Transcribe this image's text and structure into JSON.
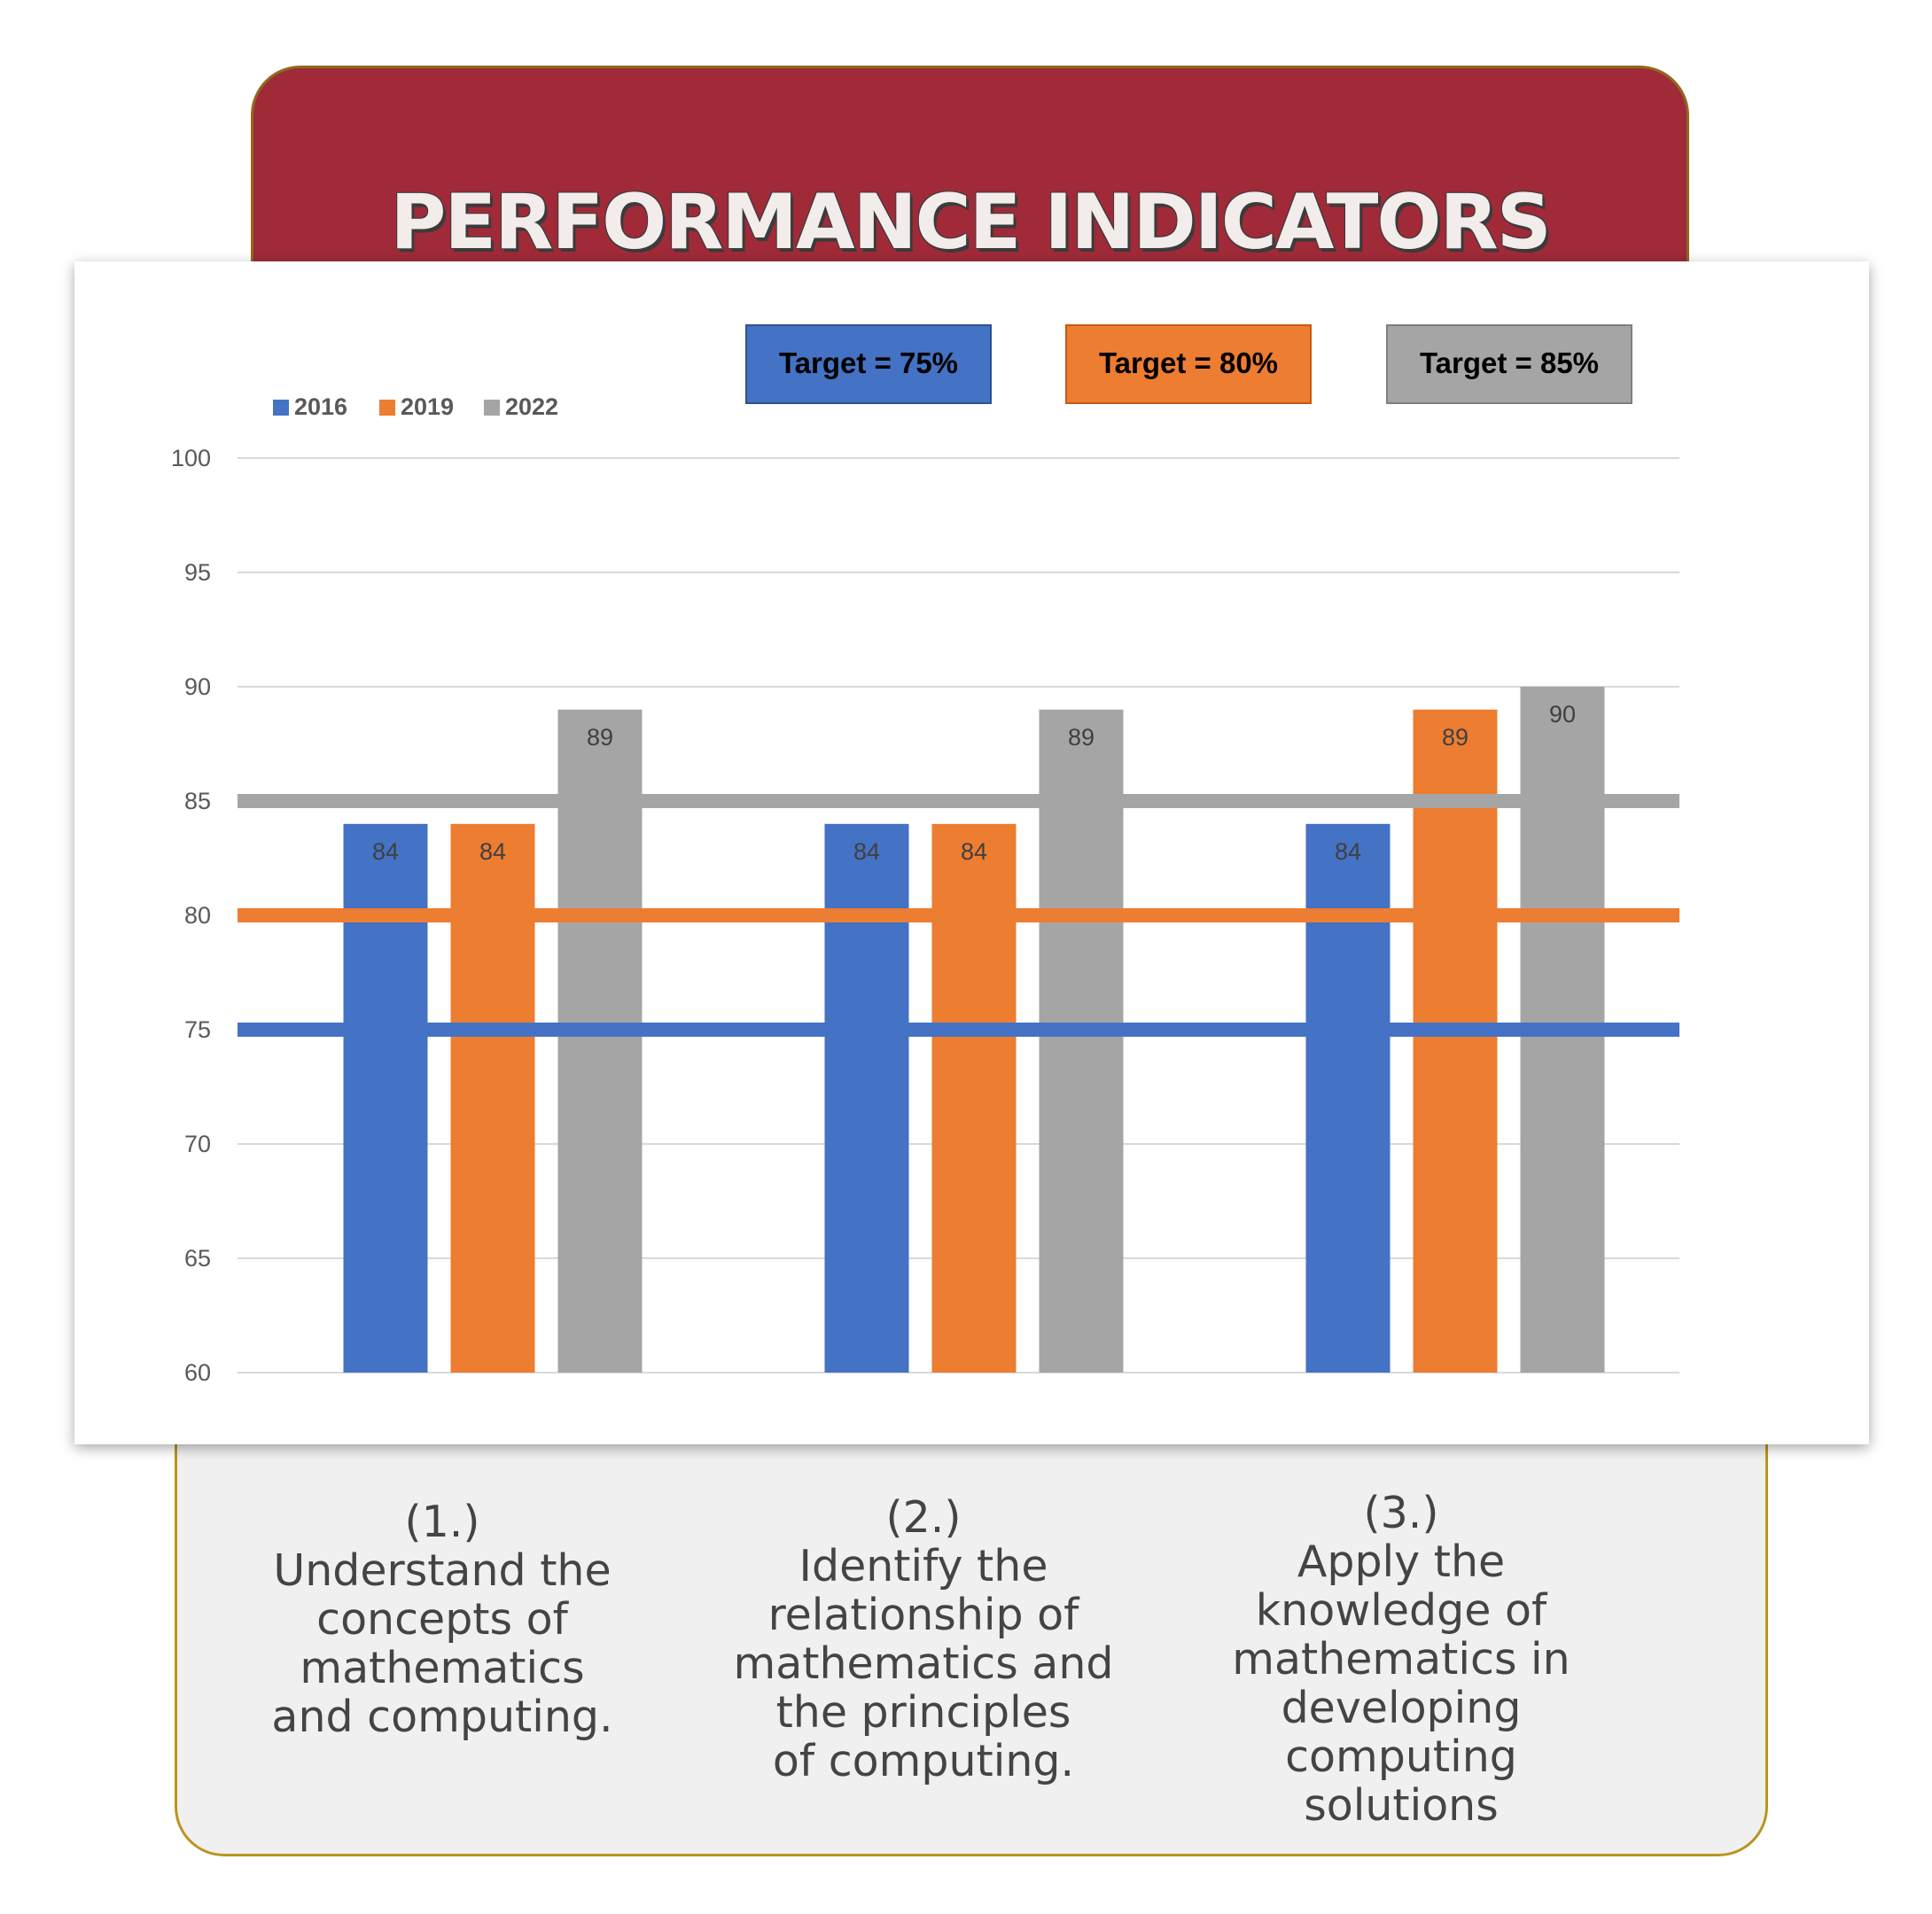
{
  "header": {
    "title": "PERFORMANCE INDICATORS"
  },
  "colors": {
    "header_bg": "#a02a38",
    "series_2016": "#4472c4",
    "series_2019": "#ed7d31",
    "series_2022": "#a5a5a5"
  },
  "targets": [
    {
      "label": "Target = 75%",
      "value": 75,
      "color": "#4472c4"
    },
    {
      "label": "Target = 80%",
      "value": 80,
      "color": "#ed7d31"
    },
    {
      "label": "Target = 85%",
      "value": 85,
      "color": "#a5a5a5"
    }
  ],
  "chart_data": {
    "type": "bar",
    "categories": [
      "(1.)",
      "(2.)",
      "(3.)"
    ],
    "series": [
      {
        "name": "2016",
        "values": [
          84,
          84,
          84
        ],
        "color": "#4472c4"
      },
      {
        "name": "2019",
        "values": [
          84,
          84,
          89
        ],
        "color": "#ed7d31"
      },
      {
        "name": "2022",
        "values": [
          89,
          89,
          90
        ],
        "color": "#a5a5a5"
      }
    ],
    "ylim": [
      60,
      100
    ],
    "yticks": [
      60,
      65,
      70,
      75,
      80,
      85,
      90,
      95,
      100
    ],
    "grid": true,
    "legend": "top-left",
    "data_labels": true,
    "reference_lines": [
      75,
      80,
      85
    ]
  },
  "outcomes": [
    {
      "number": "(1.)",
      "text": "Understand the\nconcepts of\nmathematics\nand computing."
    },
    {
      "number": "(2.)",
      "text": "Identify the\nrelationship of\nmathematics and\nthe principles\nof computing."
    },
    {
      "number": "(3.)",
      "text": "Apply the\nknowledge of\nmathematics in\ndeveloping\ncomputing solutions"
    }
  ]
}
